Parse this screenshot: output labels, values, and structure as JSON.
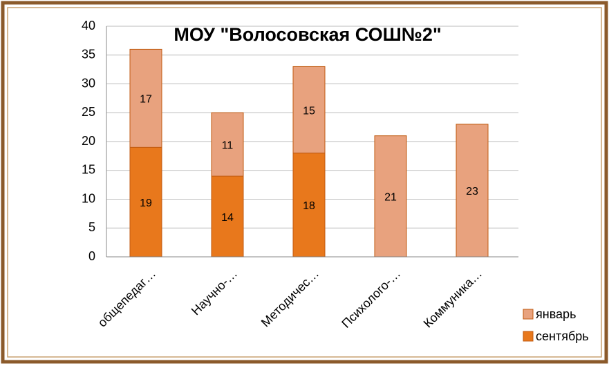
{
  "chart_data": {
    "type": "bar",
    "stacked": true,
    "title": "МОУ \"Волосовская СОШ№2\"",
    "categories": [
      "общепедаг…",
      "Научно-…",
      "Методичес…",
      "Психолого-…",
      "Коммуника…"
    ],
    "series": [
      {
        "name": "сентябрь",
        "color": "#e8781c",
        "values": [
          19,
          14,
          18,
          null,
          null
        ]
      },
      {
        "name": "январь",
        "color": "#e8a27e",
        "values": [
          17,
          11,
          15,
          21,
          23
        ]
      }
    ],
    "ylim": [
      0,
      40
    ],
    "yticks": [
      0,
      5,
      10,
      15,
      20,
      25,
      30,
      35,
      40
    ],
    "grid": true,
    "legend": "lower right"
  }
}
